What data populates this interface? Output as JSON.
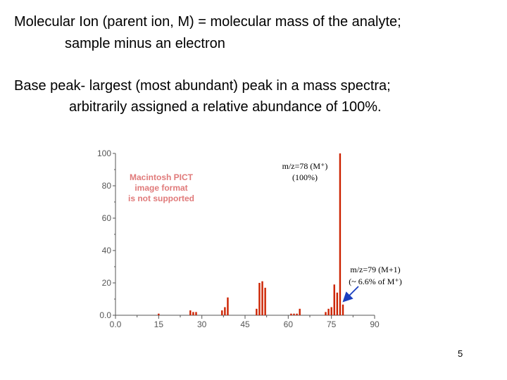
{
  "slide": {
    "lines": [
      "Molecular Ion (parent ion, M) = molecular mass of the analyte;",
      "sample minus an electron",
      "Base peak- largest (most abundant) peak in a mass spectra;",
      "arbitrarily assigned a relative abundance of 100%."
    ],
    "page_number": "5"
  },
  "placeholder": {
    "lines": [
      "Macintosh PICT",
      "image format",
      "is not supported"
    ]
  },
  "annotations": {
    "base_peak": {
      "line1": "m/z=78 (M⁺)",
      "line2": "(100%)"
    },
    "m_plus_1": {
      "line1": "m/z=79 (M+1)",
      "line2": "(~ 6.6% of M⁺)"
    }
  },
  "colors": {
    "bars": "#cc2200",
    "arrow": "#1a3fbf",
    "axis": "#555555"
  },
  "chart_data": {
    "type": "bar",
    "title": "",
    "xlabel": "",
    "ylabel": "",
    "xlim": [
      0,
      90
    ],
    "ylim": [
      0,
      100
    ],
    "xticks": [
      "0.0",
      "15",
      "30",
      "45",
      "60",
      "75",
      "90"
    ],
    "yticks": [
      "0.0",
      "20",
      "40",
      "60",
      "80",
      "100"
    ],
    "grid": false,
    "series": [
      {
        "x": [
          15,
          26,
          27,
          28,
          37,
          38,
          39,
          49,
          50,
          51,
          52,
          61,
          62,
          63,
          64,
          73,
          74,
          75,
          76,
          77,
          78,
          79
        ],
        "values": [
          1,
          3,
          2,
          2,
          3,
          5,
          11,
          4,
          20,
          21,
          17,
          1,
          1,
          1,
          4,
          2,
          4,
          5,
          19,
          14,
          100,
          6.6
        ]
      }
    ]
  }
}
